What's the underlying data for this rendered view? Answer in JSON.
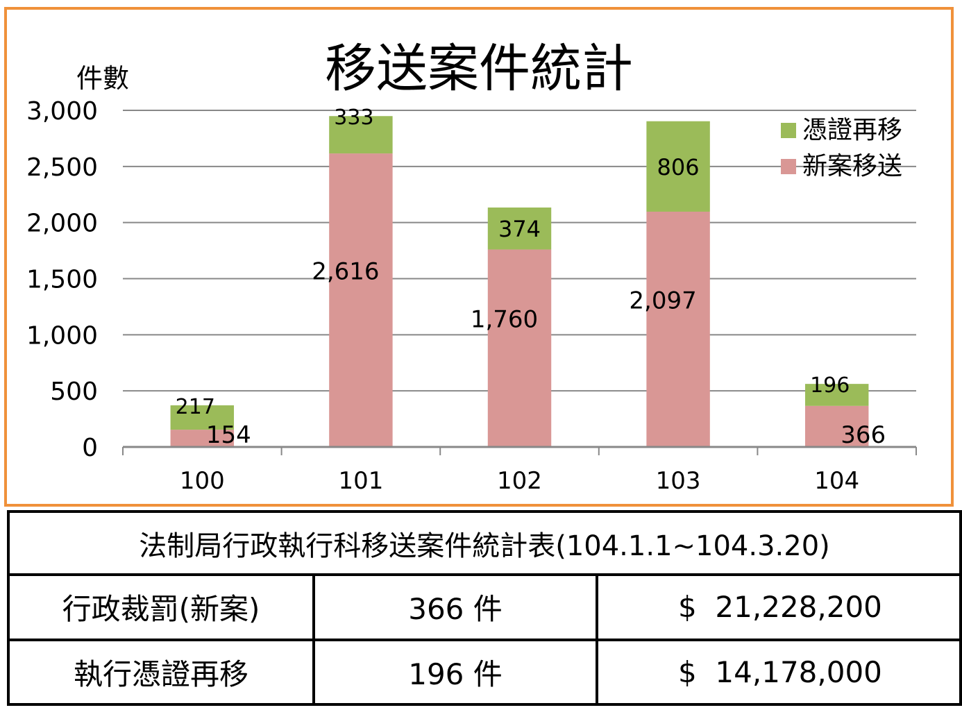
{
  "chart_data": {
    "type": "bar",
    "stacked": true,
    "title": "移送案件統計",
    "ylabel": "件數",
    "xlabel": "",
    "categories": [
      "100",
      "101",
      "102",
      "103",
      "104"
    ],
    "ylim": [
      0,
      3000
    ],
    "yticks": [
      "0",
      "500",
      "1,000",
      "1,500",
      "2,000",
      "2,500",
      "3,000"
    ],
    "ytick_values": [
      0,
      500,
      1000,
      1500,
      2000,
      2500,
      3000
    ],
    "grid": true,
    "legend_position": "top-right",
    "series": [
      {
        "name": "新案移送",
        "color": "#d99795",
        "values": [
          154,
          2616,
          1760,
          2097,
          366
        ],
        "labels": [
          "154",
          "2,616",
          "1,760",
          "2,097",
          "366"
        ]
      },
      {
        "name": "憑證再移",
        "color": "#9bbb59",
        "values": [
          217,
          333,
          374,
          806,
          196
        ],
        "labels": [
          "217",
          "333",
          "374",
          "806",
          "196"
        ]
      }
    ]
  },
  "table": {
    "caption": "法制局行政執行科移送案件統計表(104.1.1~104.3.20)",
    "rows": [
      {
        "label": "行政裁罰(新案)",
        "count": "366 件",
        "amount": "$  21,228,200"
      },
      {
        "label": "執行憑證再移",
        "count": "196 件",
        "amount": "$  14,178,000"
      }
    ]
  },
  "colors": {
    "frame_border": "#f0913a",
    "grid": "#888888"
  }
}
